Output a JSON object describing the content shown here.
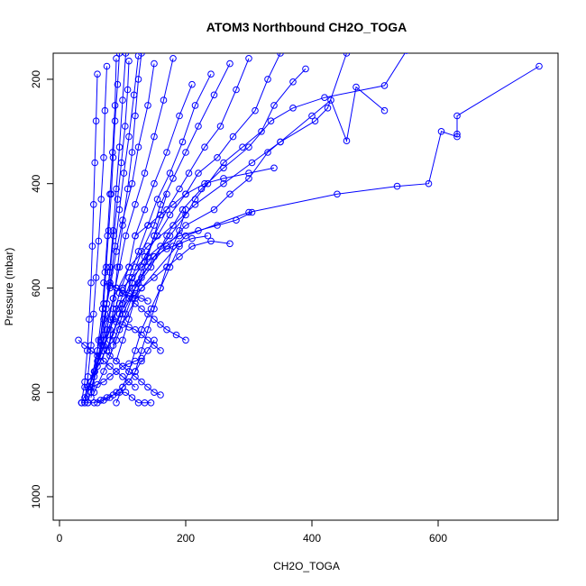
{
  "chart_data": {
    "type": "scatter",
    "title": "ATOM3 Northbound CH2O_TOGA",
    "xlabel": "CH2O_TOGA",
    "ylabel": "Pressure (mbar)",
    "xlim": [
      -10,
      790
    ],
    "ylim": [
      1045,
      150
    ],
    "y_reversed": true,
    "x_ticks": [
      0,
      200,
      400,
      600
    ],
    "y_ticks": [
      200,
      400,
      600,
      800,
      1000
    ],
    "color": "#0000ff",
    "marker": "open-circle",
    "connected": true,
    "grid": false,
    "series": [
      {
        "x": [
          760,
          630,
          630,
          630,
          605,
          585,
          535,
          440,
          300,
          200,
          130,
          95
        ],
        "y": [
          175,
          270,
          305,
          310,
          300,
          400,
          405,
          420,
          455,
          500,
          600,
          680
        ]
      },
      {
        "x": [
          550,
          515,
          420,
          370,
          335,
          300,
          260,
          225,
          195,
          170,
          145,
          120,
          100,
          85
        ],
        "y": [
          145,
          212,
          235,
          255,
          280,
          330,
          370,
          410,
          450,
          500,
          560,
          600,
          650,
          710
        ]
      },
      {
        "x": [
          515,
          470,
          455,
          430,
          400,
          350,
          305,
          260,
          215,
          180,
          140,
          110,
          85,
          70
        ],
        "y": [
          260,
          215,
          318,
          240,
          270,
          320,
          360,
          400,
          440,
          480,
          520,
          560,
          620,
          690
        ]
      },
      {
        "x": [
          455,
          425,
          405,
          350,
          330,
          300,
          270,
          245,
          200,
          170,
          140,
          115,
          90,
          70
        ],
        "y": [
          150,
          255,
          280,
          320,
          340,
          390,
          420,
          450,
          480,
          520,
          560,
          600,
          640,
          700
        ]
      },
      {
        "x": [
          390,
          370,
          340,
          320,
          290,
          260,
          235,
          215,
          200,
          175,
          150,
          125,
          95,
          75
        ],
        "y": [
          180,
          205,
          250,
          300,
          330,
          360,
          400,
          430,
          460,
          500,
          540,
          590,
          650,
          720
        ]
      },
      {
        "x": [
          350,
          330,
          310,
          275,
          250,
          220,
          200,
          175,
          155,
          135,
          115,
          100,
          80
        ],
        "y": [
          150,
          200,
          260,
          310,
          350,
          380,
          420,
          460,
          500,
          540,
          590,
          640,
          700
        ]
      },
      {
        "x": [
          300,
          280,
          255,
          230,
          205,
          190,
          170,
          150,
          135,
          120,
          105,
          90,
          70,
          55
        ],
        "y": [
          160,
          220,
          290,
          330,
          380,
          410,
          450,
          500,
          550,
          600,
          650,
          700,
          760,
          800
        ]
      },
      {
        "x": [
          270,
          245,
          220,
          200,
          180,
          160,
          150,
          130,
          115,
          100,
          85,
          65,
          45
        ],
        "y": [
          170,
          230,
          290,
          340,
          390,
          440,
          480,
          530,
          580,
          630,
          690,
          740,
          790
        ]
      },
      {
        "x": [
          240,
          215,
          195,
          175,
          155,
          140,
          125,
          110,
          95,
          80,
          65,
          50,
          35
        ],
        "y": [
          190,
          250,
          320,
          380,
          430,
          480,
          530,
          580,
          630,
          680,
          730,
          780,
          820
        ]
      },
      {
        "x": [
          210,
          190,
          170,
          150,
          135,
          120,
          110,
          95,
          85,
          70,
          55,
          40
        ],
        "y": [
          210,
          270,
          340,
          400,
          450,
          500,
          560,
          610,
          660,
          710,
          760,
          810
        ]
      },
      {
        "x": [
          180,
          165,
          150,
          135,
          120,
          105,
          95,
          85,
          75,
          60,
          50
        ],
        "y": [
          160,
          240,
          310,
          380,
          440,
          500,
          560,
          620,
          680,
          740,
          800
        ]
      },
      {
        "x": [
          150,
          140,
          125,
          115,
          100,
          90,
          80,
          70,
          60,
          50,
          40
        ],
        "y": [
          170,
          250,
          330,
          400,
          470,
          530,
          600,
          660,
          720,
          780,
          820
        ]
      },
      {
        "x": [
          125,
          118,
          110,
          102,
          95,
          88,
          80,
          72,
          65,
          55,
          45
        ],
        "y": [
          155,
          230,
          310,
          380,
          450,
          520,
          590,
          650,
          710,
          770,
          820
        ]
      },
      {
        "x": [
          105,
          100,
          95,
          90,
          85,
          80,
          75,
          70,
          60,
          50
        ],
        "y": [
          150,
          240,
          330,
          410,
          490,
          560,
          630,
          690,
          750,
          800
        ]
      },
      {
        "x": [
          90,
          88,
          84,
          80,
          76,
          72,
          68,
          62,
          56,
          50
        ],
        "y": [
          160,
          250,
          340,
          420,
          500,
          570,
          640,
          700,
          760,
          810
        ]
      },
      {
        "x": [
          75,
          72,
          70,
          66,
          62,
          58,
          54,
          50,
          45,
          40
        ],
        "y": [
          175,
          260,
          350,
          430,
          510,
          580,
          650,
          710,
          770,
          820
        ]
      },
      {
        "x": [
          60,
          58,
          56,
          54,
          52,
          50,
          47,
          44,
          40,
          35
        ],
        "y": [
          190,
          280,
          360,
          440,
          520,
          590,
          660,
          720,
          780,
          820
        ]
      },
      {
        "x": [
          130,
          125,
          120,
          115,
          108,
          100,
          92,
          85,
          78
        ],
        "y": [
          150,
          200,
          270,
          340,
          410,
          480,
          560,
          640,
          720
        ]
      },
      {
        "x": [
          110,
          108,
          104,
          98,
          92,
          86,
          80,
          74,
          68
        ],
        "y": [
          165,
          220,
          290,
          360,
          430,
          500,
          570,
          640,
          710
        ]
      },
      {
        "x": [
          95,
          92,
          88,
          85,
          82,
          78,
          74,
          70,
          65
        ],
        "y": [
          150,
          210,
          280,
          350,
          420,
          490,
          560,
          630,
          700
        ]
      },
      {
        "x": [
          170,
          160,
          150,
          140,
          130,
          120,
          110,
          100,
          90
        ],
        "y": [
          420,
          460,
          500,
          540,
          580,
          620,
          660,
          700,
          740
        ]
      },
      {
        "x": [
          200,
          190,
          180,
          170,
          160,
          150,
          140,
          130,
          120
        ],
        "y": [
          450,
          490,
          520,
          560,
          600,
          640,
          680,
          720,
          760
        ]
      },
      {
        "x": [
          190,
          175,
          160,
          145,
          130,
          120,
          110,
          100,
          90
        ],
        "y": [
          520,
          560,
          600,
          640,
          680,
          720,
          760,
          790,
          820
        ]
      },
      {
        "x": [
          150,
          140,
          130,
          120,
          110,
          100,
          90,
          80,
          70,
          60
        ],
        "y": [
          700,
          720,
          740,
          760,
          780,
          790,
          800,
          810,
          815,
          820
        ]
      },
      {
        "x": [
          200,
          185,
          170,
          160,
          150,
          140,
          130,
          120,
          110,
          100,
          90,
          80
        ],
        "y": [
          700,
          690,
          680,
          670,
          660,
          650,
          640,
          630,
          620,
          610,
          600,
          590
        ]
      },
      {
        "x": [
          160,
          150,
          140,
          130,
          120,
          110,
          100,
          90,
          80,
          70
        ],
        "y": [
          805,
          800,
          790,
          780,
          770,
          760,
          750,
          740,
          730,
          720
        ]
      },
      {
        "x": [
          30,
          40,
          50,
          60,
          70,
          80,
          90,
          100,
          110,
          120
        ],
        "y": [
          700,
          710,
          720,
          730,
          740,
          750,
          760,
          770,
          780,
          790
        ]
      },
      {
        "x": [
          35,
          45,
          55,
          65,
          75,
          85,
          95,
          105,
          115,
          125,
          135,
          145
        ],
        "y": [
          820,
          820,
          820,
          815,
          810,
          805,
          800,
          800,
          810,
          820,
          820,
          820
        ]
      },
      {
        "x": [
          40,
          50,
          60,
          70,
          80,
          90,
          100,
          110,
          120,
          130
        ],
        "y": [
          790,
          790,
          785,
          780,
          770,
          760,
          750,
          745,
          740,
          735
        ]
      },
      {
        "x": [
          70,
          80,
          90,
          100,
          110,
          120,
          130,
          140
        ],
        "y": [
          590,
          595,
          600,
          605,
          610,
          615,
          620,
          625
        ]
      },
      {
        "x": [
          80,
          90,
          100,
          110,
          120,
          130,
          140,
          150,
          160
        ],
        "y": [
          660,
          665,
          670,
          675,
          680,
          690,
          700,
          710,
          720
        ]
      },
      {
        "x": [
          305,
          280,
          250,
          220,
          190,
          160,
          140,
          120
        ],
        "y": [
          455,
          470,
          480,
          490,
          500,
          520,
          540,
          560
        ]
      },
      {
        "x": [
          340,
          300,
          260,
          230,
          200,
          180,
          160,
          140,
          120
        ],
        "y": [
          370,
          380,
          390,
          400,
          420,
          440,
          460,
          480,
          500
        ]
      },
      {
        "x": [
          270,
          240,
          210,
          190,
          170,
          150,
          130,
          115
        ],
        "y": [
          515,
          510,
          520,
          540,
          560,
          580,
          600,
          620
        ]
      },
      {
        "x": [
          235,
          210,
          190,
          170,
          150,
          130,
          115,
          100
        ],
        "y": [
          500,
          505,
          515,
          525,
          540,
          560,
          580,
          600
        ]
      }
    ]
  }
}
